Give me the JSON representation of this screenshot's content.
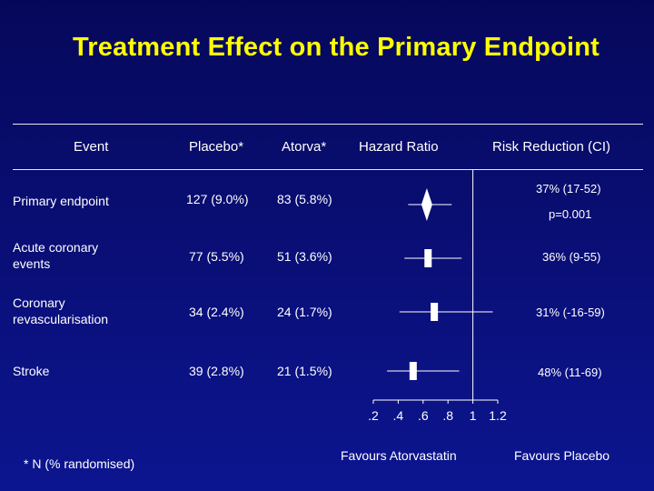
{
  "title": "Treatment Effect on the Primary Endpoint",
  "headers": {
    "event": "Event",
    "placebo": "Placebo*",
    "atorva": "Atorva*",
    "hazard": "Hazard Ratio",
    "risk": "Risk Reduction (CI)"
  },
  "rows": [
    {
      "event_line1": "Primary endpoint",
      "event_line2": "",
      "placebo": "127 (9.0%)",
      "atorva": "83 (5.8%)",
      "risk": "37% (17-52)",
      "pvalue": "p=0.001"
    },
    {
      "event_line1": "Acute coronary",
      "event_line2": "events",
      "placebo": "77 (5.5%)",
      "atorva": "51 (3.6%)",
      "risk": "36% (9-55)",
      "pvalue": ""
    },
    {
      "event_line1": "Coronary",
      "event_line2": "revascularisation",
      "placebo": "34 (2.4%)",
      "atorva": "24 (1.7%)",
      "risk": "31% (-16-59)",
      "pvalue": ""
    },
    {
      "event_line1": "Stroke",
      "event_line2": "",
      "placebo": "39 (2.8%)",
      "atorva": "21 (1.5%)",
      "risk": "48% (11-69)",
      "pvalue": ""
    }
  ],
  "chart_data": {
    "type": "forest",
    "xlim": [
      0.2,
      1.2
    ],
    "reference_line": 1,
    "x_ticks": [
      0.2,
      0.4,
      0.6,
      0.8,
      1,
      1.2
    ],
    "x_tick_labels": [
      ".2",
      ".4",
      ".6",
      ".8",
      "1",
      "1.2"
    ],
    "left_label": "Favours Atorvastatin",
    "right_label": "Favours Placebo",
    "points": [
      {
        "event": "Primary endpoint",
        "hr": 0.63,
        "lower": 0.48,
        "upper": 0.83,
        "marker": "diamond"
      },
      {
        "event": "Acute coronary events",
        "hr": 0.64,
        "lower": 0.45,
        "upper": 0.91,
        "marker": "square"
      },
      {
        "event": "Coronary revascularisation",
        "hr": 0.69,
        "lower": 0.41,
        "upper": 1.16,
        "marker": "square"
      },
      {
        "event": "Stroke",
        "hr": 0.52,
        "lower": 0.31,
        "upper": 0.89,
        "marker": "square"
      }
    ]
  },
  "footnote": "* N (% randomised)",
  "colors": {
    "background": "#0a0f78",
    "title": "#ffff00",
    "text": "#ffffff"
  }
}
